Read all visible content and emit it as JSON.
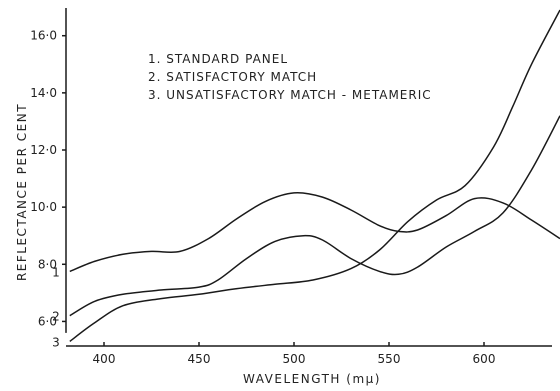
{
  "chart_data": {
    "type": "line",
    "title": "",
    "xlabel": "WAVELENGTH (mμ)",
    "ylabel": "REFLECTANCE PER CENT",
    "xlim": [
      380,
      640
    ],
    "ylim": [
      5.0,
      16.9
    ],
    "x_ticks": [
      "400",
      "450",
      "500",
      "550",
      "600"
    ],
    "y_ticks": [
      "6·0",
      "8·0",
      "10·0",
      "12·0",
      "14·0",
      "16·0"
    ],
    "legend": [
      "1. STANDARD PANEL",
      "2. SATISFACTORY MATCH",
      "3. UNSATISFACTORY MATCH - METAMERIC"
    ],
    "legend_position": "top-left",
    "grid": false,
    "series": [
      {
        "curve_label": "1",
        "x": [
          382,
          395,
          410,
          425,
          440,
          455,
          470,
          485,
          500,
          515,
          530,
          545,
          555,
          565,
          580,
          595,
          610,
          625,
          640
        ],
        "y": [
          7.75,
          8.1,
          8.35,
          8.45,
          8.45,
          8.9,
          9.6,
          10.2,
          10.5,
          10.35,
          9.9,
          9.35,
          9.15,
          9.2,
          9.7,
          10.3,
          10.15,
          9.55,
          8.9
        ]
      },
      {
        "curve_label": "2",
        "x": [
          382,
          395,
          410,
          430,
          450,
          460,
          475,
          490,
          505,
          515,
          530,
          545,
          555,
          565,
          580,
          595,
          610,
          625,
          640
        ],
        "y": [
          6.2,
          6.7,
          6.95,
          7.1,
          7.2,
          7.45,
          8.2,
          8.8,
          9.0,
          8.85,
          8.2,
          7.75,
          7.65,
          7.9,
          8.6,
          9.15,
          9.8,
          11.3,
          13.2
        ]
      },
      {
        "curve_label": "3",
        "x": [
          382,
          395,
          410,
          430,
          450,
          470,
          490,
          510,
          530,
          545,
          560,
          575,
          590,
          605,
          615,
          625,
          640
        ],
        "y": [
          5.3,
          5.95,
          6.55,
          6.8,
          6.95,
          7.15,
          7.3,
          7.45,
          7.85,
          8.5,
          9.5,
          10.25,
          10.75,
          12.1,
          13.5,
          15.0,
          16.9
        ]
      }
    ]
  }
}
